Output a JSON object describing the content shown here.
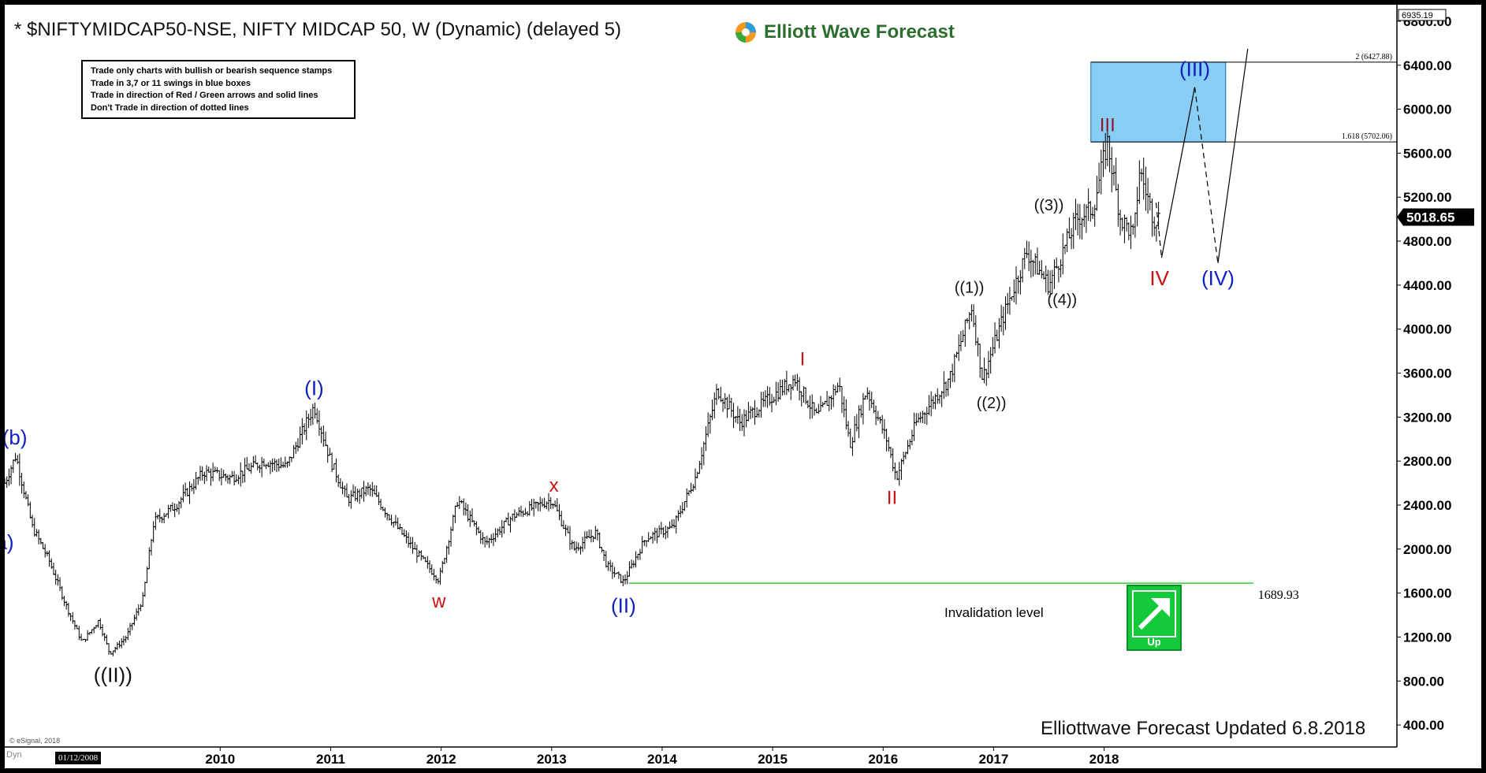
{
  "header": {
    "title": "* $NIFTYMIDCAP50-NSE, NIFTY MIDCAP 50, W (Dynamic) (delayed 5)",
    "logo_text": "Elliott Wave Forecast"
  },
  "rules": [
    "Trade only charts with bullish or bearish sequence stamps",
    "Trade in 3,7 or 11 swings in blue boxes",
    "Trade in direction of Red / Green arrows and solid lines",
    "Don't Trade in direction of dotted lines"
  ],
  "footer": {
    "updated": "Elliottwave Forecast Updated 6.8.2018",
    "copyright": "© eSignal, 2018",
    "dyn": "Dyn",
    "start_date": "01/12/2008",
    "up_label": "Up"
  },
  "colors": {
    "candle": "#000000",
    "blue_label": "#1020c0",
    "red_label": "#cc1111",
    "dark_red_label": "#8b1a2a",
    "black_label": "#111111",
    "target_box": "#87cdf4",
    "invalidation_line": "#33cc33",
    "up_badge": "#14c93a"
  },
  "chart_data": {
    "type": "candlestick",
    "symbol": "$NIFTYMIDCAP50-NSE",
    "timeframe": "W",
    "y_axis": {
      "range": [
        200,
        6950
      ],
      "ticks": [
        "400.00",
        "800.00",
        "1200.00",
        "1600.00",
        "2000.00",
        "2400.00",
        "2800.00",
        "3200.00",
        "3600.00",
        "4000.00",
        "4400.00",
        "4800.00",
        "5200.00",
        "5600.00",
        "6000.00",
        "6400.00",
        "6800.00"
      ],
      "top_label": "6935.19",
      "current_price": "5018.65"
    },
    "x_axis": {
      "range": [
        2008.05,
        2020.65
      ],
      "year_labels": [
        "2010",
        "2011",
        "2012",
        "2013",
        "2014",
        "2015",
        "2016",
        "2017",
        "2018"
      ]
    },
    "price_path": [
      [
        2008.05,
        2600
      ],
      [
        2008.15,
        2850
      ],
      [
        2008.3,
        2200
      ],
      [
        2008.45,
        1900
      ],
      [
        2008.6,
        1500
      ],
      [
        2008.75,
        1150
      ],
      [
        2008.9,
        1350
      ],
      [
        2009.0,
        1050
      ],
      [
        2009.15,
        1200
      ],
      [
        2009.3,
        1550
      ],
      [
        2009.4,
        2250
      ],
      [
        2009.6,
        2400
      ],
      [
        2009.85,
        2700
      ],
      [
        2010.1,
        2650
      ],
      [
        2010.4,
        2800
      ],
      [
        2010.6,
        2750
      ],
      [
        2010.85,
        3300
      ],
      [
        2011.0,
        2800
      ],
      [
        2011.15,
        2450
      ],
      [
        2011.35,
        2550
      ],
      [
        2011.6,
        2200
      ],
      [
        2011.75,
        2000
      ],
      [
        2011.98,
        1720
      ],
      [
        2012.15,
        2450
      ],
      [
        2012.4,
        2050
      ],
      [
        2012.65,
        2300
      ],
      [
        2013.0,
        2450
      ],
      [
        2013.2,
        2000
      ],
      [
        2013.4,
        2150
      ],
      [
        2013.5,
        1850
      ],
      [
        2013.65,
        1700
      ],
      [
        2013.85,
        2100
      ],
      [
        2014.1,
        2200
      ],
      [
        2014.3,
        2650
      ],
      [
        2014.5,
        3450
      ],
      [
        2014.7,
        3150
      ],
      [
        2014.95,
        3350
      ],
      [
        2015.2,
        3550
      ],
      [
        2015.4,
        3200
      ],
      [
        2015.6,
        3500
      ],
      [
        2015.7,
        2950
      ],
      [
        2015.85,
        3450
      ],
      [
        2016.03,
        3000
      ],
      [
        2016.12,
        2650
      ],
      [
        2016.3,
        3150
      ],
      [
        2016.6,
        3550
      ],
      [
        2016.8,
        4200
      ],
      [
        2016.9,
        3550
      ],
      [
        2017.1,
        4150
      ],
      [
        2017.3,
        4700
      ],
      [
        2017.5,
        4400
      ],
      [
        2017.75,
        5000
      ],
      [
        2017.9,
        5100
      ],
      [
        2018.03,
        5702
      ],
      [
        2018.15,
        5000
      ],
      [
        2018.27,
        4850
      ],
      [
        2018.32,
        5450
      ],
      [
        2018.45,
        5000
      ],
      [
        2018.5,
        5018.65
      ]
    ],
    "projections": [
      {
        "style": "dashed",
        "points": [
          [
            2018.47,
            5150
          ],
          [
            2018.52,
            4650
          ]
        ]
      },
      {
        "style": "solid",
        "points": [
          [
            2018.52,
            4650
          ],
          [
            2018.82,
            6200
          ]
        ]
      },
      {
        "style": "dashed",
        "points": [
          [
            2018.82,
            6200
          ],
          [
            2019.03,
            4600
          ]
        ]
      },
      {
        "style": "solid",
        "points": [
          [
            2019.03,
            4600
          ],
          [
            2019.3,
            6550
          ]
        ]
      }
    ],
    "target_box": {
      "x_range": [
        2017.88,
        2019.1
      ],
      "y_range": [
        5702.06,
        6427.88
      ]
    },
    "fib_levels": [
      {
        "label": "2 (6427.88)",
        "value": 6427.88
      },
      {
        "label": "1.618 (5702.06)",
        "value": 5702.06
      }
    ],
    "invalidation": {
      "value": 1689.93,
      "label": "1689.93",
      "text": "Invalidation level",
      "x_range": [
        2013.7,
        2019.35
      ]
    },
    "wave_labels": [
      {
        "text": "(b)",
        "x": 2008.14,
        "y": 2950,
        "color": "blue_label",
        "size": 26
      },
      {
        "text": "a)",
        "x": 2008.05,
        "y": 2000,
        "color": "blue_label",
        "size": 26
      },
      {
        "text": "((II))",
        "x": 2009.03,
        "y": 790,
        "color": "black_label",
        "size": 26
      },
      {
        "text": "(I)",
        "x": 2010.85,
        "y": 3400,
        "color": "blue_label",
        "size": 26
      },
      {
        "text": "w",
        "x": 2011.98,
        "y": 1470,
        "color": "red_label",
        "size": 24
      },
      {
        "text": "x",
        "x": 2013.02,
        "y": 2520,
        "color": "red_label",
        "size": 24
      },
      {
        "text": "(II)",
        "x": 2013.65,
        "y": 1420,
        "color": "blue_label",
        "size": 26
      },
      {
        "text": "I",
        "x": 2015.27,
        "y": 3670,
        "color": "red_label",
        "size": 24
      },
      {
        "text": "II",
        "x": 2016.08,
        "y": 2410,
        "color": "red_label",
        "size": 24
      },
      {
        "text": "((1))",
        "x": 2016.78,
        "y": 4330,
        "color": "black_label",
        "size": 20
      },
      {
        "text": "((2))",
        "x": 2016.98,
        "y": 3280,
        "color": "black_label",
        "size": 20
      },
      {
        "text": "((3))",
        "x": 2017.5,
        "y": 5080,
        "color": "black_label",
        "size": 20
      },
      {
        "text": "((4))",
        "x": 2017.62,
        "y": 4220,
        "color": "black_label",
        "size": 20
      },
      {
        "text": "III",
        "x": 2018.03,
        "y": 5800,
        "color": "dark_red_label",
        "size": 24
      },
      {
        "text": "IV",
        "x": 2018.5,
        "y": 4400,
        "color": "red_label",
        "size": 26
      },
      {
        "text": "(III)",
        "x": 2018.82,
        "y": 6300,
        "color": "blue_label",
        "size": 26
      },
      {
        "text": "(IV)",
        "x": 2019.03,
        "y": 4400,
        "color": "blue_label",
        "size": 26
      }
    ]
  }
}
